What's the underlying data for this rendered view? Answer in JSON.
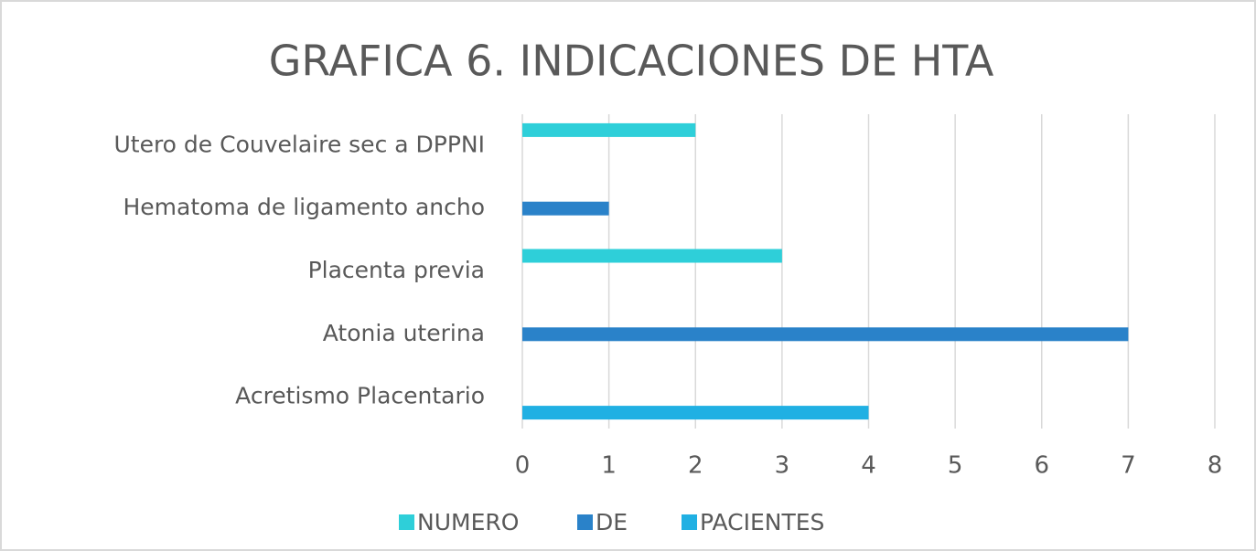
{
  "chart_data": {
    "type": "bar",
    "orientation": "horizontal",
    "title": "GRAFICA 6. INDICACIONES DE HTA",
    "categories": [
      "Utero de Couvelaire sec a DPPNI",
      "Hematoma de ligamento ancho",
      "Placenta previa",
      "Atonia uterina",
      "Acretismo Placentario"
    ],
    "series": [
      {
        "name": "NUMERO",
        "color": "#2ecfd9",
        "values": [
          2,
          null,
          3,
          null,
          null
        ]
      },
      {
        "name": "DE",
        "color": "#2a82c9",
        "values": [
          null,
          1,
          null,
          7,
          null
        ]
      },
      {
        "name": "PACIENTES",
        "color": "#20b0e3",
        "values": [
          null,
          null,
          null,
          null,
          4
        ]
      }
    ],
    "xlim": [
      0,
      8
    ],
    "xticks": [
      0,
      1,
      2,
      3,
      4,
      5,
      6,
      7,
      8
    ],
    "grid": true,
    "legend": "bottom"
  }
}
